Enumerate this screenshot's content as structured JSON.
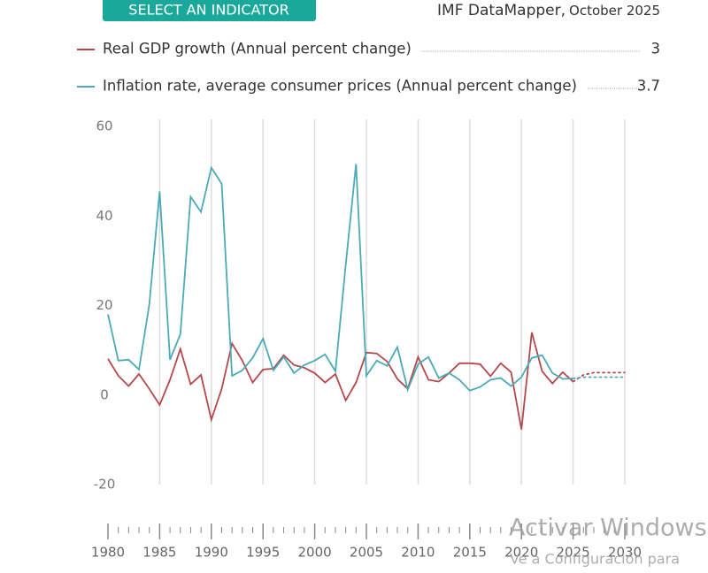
{
  "header": {
    "button": "SELECT AN INDICATOR",
    "source": "IMF DataMapper,",
    "edition": "October 2025"
  },
  "chart_data": {
    "type": "line",
    "x": [
      1980,
      1981,
      1982,
      1983,
      1984,
      1985,
      1986,
      1987,
      1988,
      1989,
      1990,
      1991,
      1992,
      1993,
      1994,
      1995,
      1996,
      1997,
      1998,
      1999,
      2000,
      2001,
      2002,
      2003,
      2004,
      2005,
      2006,
      2007,
      2008,
      2009,
      2010,
      2011,
      2012,
      2013,
      2014,
      2015,
      2016,
      2017,
      2018,
      2019,
      2020,
      2021,
      2022,
      2023,
      2024,
      2025,
      2026,
      2027,
      2028,
      2029,
      2030
    ],
    "series": [
      {
        "name": "Real GDP growth (Annual percent change)",
        "color": "#b5484b",
        "values": [
          8.1,
          4.3,
          2,
          4.7,
          1.4,
          -2.2,
          3.4,
          10.3,
          2.4,
          4.5,
          -5.5,
          1.4,
          11.5,
          7.7,
          2.8,
          5.7,
          5.9,
          8.9,
          6.7,
          6.1,
          4.9,
          2.8,
          4.7,
          -1.2,
          2.8,
          9.5,
          9.3,
          7.5,
          3.6,
          1.4,
          8.5,
          3.4,
          3,
          4.9,
          7.1,
          7.1,
          6.9,
          4.2,
          7.1,
          5.1,
          -7.7,
          14,
          5.3,
          2.6,
          5.1,
          3,
          4.5,
          5,
          5,
          5,
          5
        ]
      },
      {
        "name": "Inflation rate, average consumer prices (Annual percent change)",
        "color": "#4aaab8",
        "values": [
          18,
          7.7,
          7.9,
          5.7,
          20.2,
          45.5,
          7.9,
          13.6,
          44.3,
          40.9,
          50.8,
          47.2,
          4.3,
          5.5,
          8.3,
          12.6,
          5.5,
          8.5,
          4.9,
          6.7,
          7.7,
          9.1,
          5.3,
          29,
          51.6,
          4.3,
          7.7,
          6.5,
          10.7,
          1.2,
          6.9,
          8.5,
          3.8,
          4.9,
          3.4,
          1,
          1.8,
          3.4,
          3.8,
          2,
          4,
          8.3,
          8.9,
          4.9,
          3.6,
          3.7,
          4,
          4,
          4,
          4,
          4
        ]
      }
    ],
    "projection_from": 2025,
    "xlim": [
      1980,
      2030
    ],
    "xticks": [
      1980,
      1985,
      1990,
      1995,
      2000,
      2005,
      2010,
      2015,
      2020,
      2025,
      2030
    ],
    "ylim": [
      -20,
      60
    ],
    "yticks": [
      -20,
      0,
      20,
      40,
      60
    ],
    "grid": true
  },
  "watermark": {
    "title": "Activar Windows",
    "text": "Ve a Configuración para"
  }
}
